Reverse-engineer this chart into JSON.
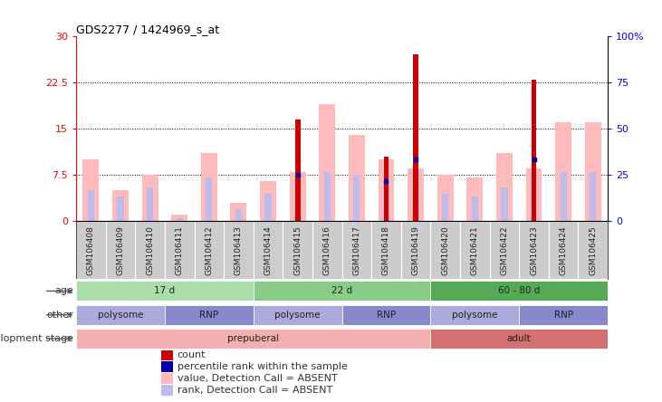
{
  "title": "GDS2277 / 1424969_s_at",
  "samples": [
    "GSM106408",
    "GSM106409",
    "GSM106410",
    "GSM106411",
    "GSM106412",
    "GSM106413",
    "GSM106414",
    "GSM106415",
    "GSM106416",
    "GSM106417",
    "GSM106418",
    "GSM106419",
    "GSM106420",
    "GSM106421",
    "GSM106422",
    "GSM106423",
    "GSM106424",
    "GSM106425"
  ],
  "pink_values": [
    10.0,
    5.0,
    7.5,
    1.0,
    11.0,
    3.0,
    6.5,
    8.0,
    19.0,
    14.0,
    10.0,
    8.5,
    7.5,
    7.0,
    11.0,
    8.5,
    16.0,
    16.0
  ],
  "lavender_values": [
    5.0,
    4.0,
    5.5,
    0.5,
    7.0,
    2.0,
    4.5,
    7.5,
    8.0,
    7.5,
    6.5,
    5.0,
    4.5,
    4.0,
    5.5,
    7.5,
    8.0,
    8.0
  ],
  "red_counts": [
    0,
    0,
    0,
    0,
    0,
    0,
    0,
    16.5,
    0,
    0,
    10.5,
    27.0,
    0,
    0,
    0,
    23.0,
    0,
    0
  ],
  "blue_ranks": [
    null,
    null,
    null,
    null,
    null,
    null,
    null,
    7.5,
    null,
    null,
    6.5,
    10.0,
    null,
    null,
    null,
    10.0,
    null,
    null
  ],
  "ylim_left": [
    0,
    30
  ],
  "ylim_right": [
    0,
    100
  ],
  "yticks_left": [
    0,
    7.5,
    15,
    22.5,
    30
  ],
  "ytick_labels_left": [
    "0",
    "7.5",
    "15",
    "22.5",
    "30"
  ],
  "ytick_labels_right": [
    "0",
    "25",
    "50",
    "75",
    "100%"
  ],
  "dotted_lines": [
    7.5,
    15,
    22.5
  ],
  "age_groups": [
    {
      "label": "17 d",
      "start": 0,
      "end": 6,
      "color": "#aaddaa"
    },
    {
      "label": "22 d",
      "start": 6,
      "end": 12,
      "color": "#88cc88"
    },
    {
      "label": "60 - 80 d",
      "start": 12,
      "end": 18,
      "color": "#55aa55"
    }
  ],
  "other_groups": [
    {
      "label": "polysome",
      "start": 0,
      "end": 3,
      "color": "#aaaadd"
    },
    {
      "label": "RNP",
      "start": 3,
      "end": 6,
      "color": "#8888cc"
    },
    {
      "label": "polysome",
      "start": 6,
      "end": 9,
      "color": "#aaaadd"
    },
    {
      "label": "RNP",
      "start": 9,
      "end": 12,
      "color": "#8888cc"
    },
    {
      "label": "polysome",
      "start": 12,
      "end": 15,
      "color": "#aaaadd"
    },
    {
      "label": "RNP",
      "start": 15,
      "end": 18,
      "color": "#8888cc"
    }
  ],
  "dev_groups": [
    {
      "label": "prepuberal",
      "start": 0,
      "end": 12,
      "color": "#f4b0b0"
    },
    {
      "label": "adult",
      "start": 12,
      "end": 18,
      "color": "#d47070"
    }
  ],
  "pink_color": "#ffbbbb",
  "lavender_color": "#bbbbee",
  "red_color": "#cc0000",
  "blue_color": "#0000aa",
  "bg_color": "#ffffff",
  "legend_items": [
    {
      "label": "count",
      "color": "#cc0000"
    },
    {
      "label": "percentile rank within the sample",
      "color": "#0000aa"
    },
    {
      "label": "value, Detection Call = ABSENT",
      "color": "#ffbbbb"
    },
    {
      "label": "rank, Detection Call = ABSENT",
      "color": "#bbbbee"
    }
  ]
}
